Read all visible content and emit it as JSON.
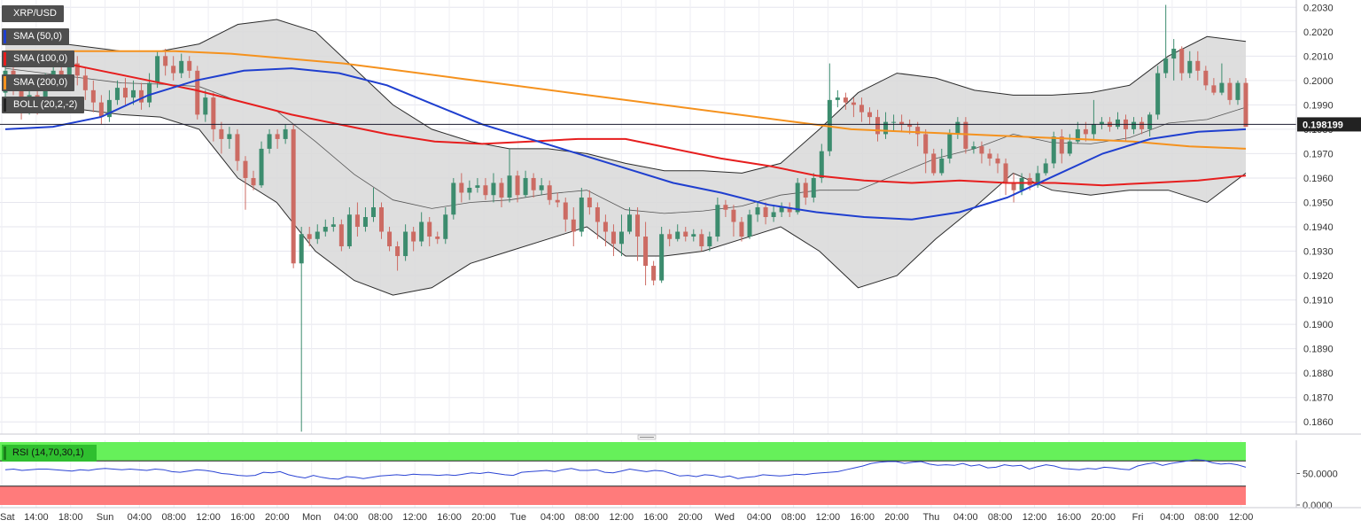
{
  "chart_data": {
    "type": "candlestick",
    "symbol": "XRP/USD",
    "current_price_label": "0.198199",
    "price_ylim": [
      0.1855,
      0.2033
    ],
    "price_ticks": [
      "0.2030",
      "0.2020",
      "0.2010",
      "0.2000",
      "0.1990",
      "0.1980",
      "0.1970",
      "0.1960",
      "0.1950",
      "0.1940",
      "0.1930",
      "0.1920",
      "0.1910",
      "0.1900",
      "0.1890",
      "0.1880",
      "0.1870",
      "0.1860"
    ],
    "x_ticks": [
      "Sat",
      "14:00",
      "18:00",
      "Sun",
      "04:00",
      "08:00",
      "12:00",
      "16:00",
      "20:00",
      "Mon",
      "04:00",
      "08:00",
      "12:00",
      "16:00",
      "20:00",
      "Tue",
      "04:00",
      "08:00",
      "12:00",
      "16:00",
      "20:00",
      "Wed",
      "04:00",
      "08:00",
      "12:00",
      "16:00",
      "20:00",
      "Thu",
      "04:00",
      "08:00",
      "12:00",
      "16:00",
      "20:00",
      "Fri",
      "04:00",
      "08:00",
      "12:00"
    ],
    "legend": [
      "SMA (50,0)",
      "SMA (100,0)",
      "SMA (200,0)",
      "BOLL (20,2,-2)"
    ],
    "rsi": {
      "label": "RSI (14,70,30,1)",
      "ticks": [
        "50.0000",
        "0.0000"
      ],
      "overbought": 70,
      "oversold": 30,
      "values": [
        56,
        57,
        55,
        56,
        57,
        57,
        56,
        55,
        54,
        56,
        55,
        57,
        58,
        57,
        56,
        57,
        56,
        55,
        57,
        56,
        53,
        52,
        54,
        56,
        55,
        53,
        50,
        49,
        47,
        46,
        47,
        52,
        51,
        53,
        48,
        45,
        43,
        47,
        44,
        42,
        41,
        45,
        44,
        42,
        44,
        46,
        47,
        48,
        47,
        49,
        48,
        48,
        47,
        48,
        47,
        49,
        51,
        50,
        52,
        50,
        48,
        47,
        52,
        53,
        54,
        55,
        53,
        56,
        58,
        55,
        55,
        56,
        52,
        51,
        54,
        57,
        55,
        53,
        55,
        54,
        50,
        46,
        47,
        45,
        48,
        47,
        44,
        46,
        42,
        44,
        45,
        48,
        47,
        46,
        47,
        49,
        48,
        50,
        51,
        52,
        53,
        56,
        59,
        62,
        66,
        68,
        69,
        69,
        66,
        68,
        69,
        65,
        63,
        64,
        63,
        66,
        62,
        64,
        59,
        60,
        64,
        62,
        63,
        57,
        61,
        64,
        62,
        58,
        57,
        56,
        58,
        57,
        60,
        59,
        57,
        56,
        62,
        65,
        67,
        63,
        66,
        68,
        70,
        72,
        71,
        67,
        65,
        66,
        64,
        60
      ]
    },
    "sma50": [
      0.198,
      0.1981,
      0.1985,
      0.1994,
      0.2,
      0.2004,
      0.2005,
      0.2003,
      0.1998,
      0.199,
      0.1982,
      0.1976,
      0.197,
      0.1964,
      0.1958,
      0.1954,
      0.1949,
      0.1946,
      0.1944,
      0.1943,
      0.1946,
      0.1952,
      0.1961,
      0.197,
      0.1976,
      0.1979,
      0.198
    ],
    "sma100": [
      0.201,
      0.2008,
      0.2004,
      0.2,
      0.1996,
      0.1991,
      0.1986,
      0.1982,
      0.1978,
      0.1975,
      0.1974,
      0.1975,
      0.1976,
      0.1976,
      0.1972,
      0.1968,
      0.1965,
      0.1961,
      0.1959,
      0.1958,
      0.1959,
      0.1958,
      0.1958,
      0.1957,
      0.1958,
      0.1959,
      0.1961
    ],
    "sma200": [
      0.2012,
      0.2012,
      0.2012,
      0.2012,
      0.2011,
      0.2009,
      0.2007,
      0.2004,
      0.2001,
      0.1998,
      0.1995,
      0.1992,
      0.1989,
      0.1986,
      0.1983,
      0.198,
      0.1979,
      0.1978,
      0.1977,
      0.1976,
      0.1975,
      0.1973,
      0.1972
    ],
    "boll_upper": [
      0.2018,
      0.2016,
      0.2014,
      0.2012,
      0.2012,
      0.2015,
      0.2023,
      0.2025,
      0.202,
      0.2005,
      0.199,
      0.198,
      0.1975,
      0.1972,
      0.1972,
      0.197,
      0.1966,
      0.1963,
      0.1963,
      0.1962,
      0.1966,
      0.198,
      0.1995,
      0.2003,
      0.2001,
      0.1996,
      0.1994,
      0.1994,
      0.1995,
      0.1998,
      0.201,
      0.2018,
      0.2016
    ],
    "boll_lower": [
      0.1992,
      0.199,
      0.1988,
      0.1986,
      0.1985,
      0.198,
      0.196,
      0.195,
      0.193,
      0.1918,
      0.1912,
      0.1915,
      0.1925,
      0.193,
      0.1935,
      0.194,
      0.1928,
      0.1928,
      0.193,
      0.1935,
      0.194,
      0.193,
      0.1915,
      0.192,
      0.1935,
      0.1948,
      0.1962,
      0.1955,
      0.1953,
      0.1955,
      0.1955,
      0.195,
      0.1962
    ],
    "candles": [
      [
        0.1995,
        0.2004,
        0.2006,
        0.199
      ],
      [
        0.2004,
        0.1998,
        0.2008,
        0.1994
      ],
      [
        0.1998,
        0.1988,
        0.2,
        0.1984
      ],
      [
        0.1988,
        0.1994,
        0.1998,
        0.1986
      ],
      [
        0.1994,
        0.199,
        0.2,
        0.1986
      ],
      [
        0.199,
        0.1999,
        0.2003,
        0.1988
      ],
      [
        0.1999,
        0.2004,
        0.2007,
        0.1996
      ],
      [
        0.2004,
        0.2001,
        0.2008,
        0.1998
      ],
      [
        0.2001,
        0.2007,
        0.201,
        0.1999
      ],
      [
        0.2007,
        0.2002,
        0.201,
        0.1998
      ],
      [
        0.2002,
        0.1996,
        0.2005,
        0.1992
      ],
      [
        0.1996,
        0.1991,
        0.2,
        0.1987
      ],
      [
        0.1991,
        0.1985,
        0.1994,
        0.1982
      ],
      [
        0.1985,
        0.1992,
        0.1996,
        0.1983
      ],
      [
        0.1992,
        0.1997,
        0.2,
        0.199
      ],
      [
        0.1997,
        0.1993,
        0.2001,
        0.199
      ],
      [
        0.1993,
        0.1996,
        0.2,
        0.199
      ],
      [
        0.1996,
        0.1991,
        0.1999,
        0.1988
      ],
      [
        0.1991,
        0.1999,
        0.2003,
        0.1989
      ],
      [
        0.1999,
        0.201,
        0.2012,
        0.1997
      ],
      [
        0.201,
        0.2006,
        0.2013,
        0.2002
      ],
      [
        0.2006,
        0.2003,
        0.201,
        0.2
      ],
      [
        0.2003,
        0.2008,
        0.2011,
        0.2001
      ],
      [
        0.2008,
        0.2004,
        0.201,
        0.2001
      ],
      [
        0.2004,
        0.1986,
        0.2006,
        0.1984
      ],
      [
        0.1986,
        0.1993,
        0.1996,
        0.1983
      ],
      [
        0.1993,
        0.198,
        0.1995,
        0.1975
      ],
      [
        0.198,
        0.1976,
        0.1983,
        0.197
      ],
      [
        0.1976,
        0.1978,
        0.1981,
        0.1972
      ],
      [
        0.1978,
        0.1967,
        0.198,
        0.1963
      ],
      [
        0.1967,
        0.196,
        0.1969,
        0.1947
      ],
      [
        0.196,
        0.1957,
        0.1963,
        0.1955
      ],
      [
        0.1957,
        0.1972,
        0.1975,
        0.1956
      ],
      [
        0.1972,
        0.1978,
        0.198,
        0.197
      ],
      [
        0.1978,
        0.1976,
        0.198,
        0.1972
      ],
      [
        0.1976,
        0.198,
        0.1982,
        0.1974
      ],
      [
        0.198,
        0.1925,
        0.1982,
        0.1923
      ],
      [
        0.1925,
        0.1937,
        0.194,
        0.1856
      ],
      [
        0.1937,
        0.1935,
        0.194,
        0.1932
      ],
      [
        0.1935,
        0.1938,
        0.1941,
        0.1933
      ],
      [
        0.1938,
        0.194,
        0.1943,
        0.1936
      ],
      [
        0.194,
        0.1941,
        0.1944,
        0.1938
      ],
      [
        0.1941,
        0.1932,
        0.1943,
        0.193
      ],
      [
        0.1932,
        0.1945,
        0.1948,
        0.1931
      ],
      [
        0.1945,
        0.194,
        0.195,
        0.1936
      ],
      [
        0.194,
        0.1944,
        0.1948,
        0.1938
      ],
      [
        0.1944,
        0.1948,
        0.1956,
        0.1942
      ],
      [
        0.1948,
        0.1938,
        0.195,
        0.1935
      ],
      [
        0.1938,
        0.1932,
        0.194,
        0.193
      ],
      [
        0.1932,
        0.1928,
        0.1934,
        0.1922
      ],
      [
        0.1928,
        0.1938,
        0.1941,
        0.1926
      ],
      [
        0.1938,
        0.1934,
        0.194,
        0.193
      ],
      [
        0.1934,
        0.1942,
        0.1946,
        0.1932
      ],
      [
        0.1942,
        0.1936,
        0.1944,
        0.1932
      ],
      [
        0.1936,
        0.1935,
        0.1938,
        0.1933
      ],
      [
        0.1935,
        0.1945,
        0.1948,
        0.1933
      ],
      [
        0.1945,
        0.1958,
        0.196,
        0.1943
      ],
      [
        0.1958,
        0.1954,
        0.1962,
        0.195
      ],
      [
        0.1954,
        0.1956,
        0.1959,
        0.1951
      ],
      [
        0.1956,
        0.1957,
        0.196,
        0.1954
      ],
      [
        0.1957,
        0.1953,
        0.196,
        0.1951
      ],
      [
        0.1953,
        0.1958,
        0.1962,
        0.195
      ],
      [
        0.1958,
        0.1952,
        0.196,
        0.1948
      ],
      [
        0.1952,
        0.1961,
        0.1972,
        0.195
      ],
      [
        0.1961,
        0.1953,
        0.1963,
        0.195
      ],
      [
        0.1953,
        0.196,
        0.1963,
        0.1952
      ],
      [
        0.196,
        0.1955,
        0.1962,
        0.1952
      ],
      [
        0.1955,
        0.1957,
        0.196,
        0.1953
      ],
      [
        0.1957,
        0.1951,
        0.1959,
        0.1949
      ],
      [
        0.1951,
        0.195,
        0.1954,
        0.1948
      ],
      [
        0.195,
        0.1943,
        0.1952,
        0.1938
      ],
      [
        0.1943,
        0.1938,
        0.1948,
        0.1932
      ],
      [
        0.1938,
        0.1952,
        0.1956,
        0.1936
      ],
      [
        0.1952,
        0.1948,
        0.1955,
        0.1945
      ],
      [
        0.1948,
        0.1942,
        0.195,
        0.1935
      ],
      [
        0.1942,
        0.1938,
        0.1945,
        0.1932
      ],
      [
        0.1938,
        0.1933,
        0.1941,
        0.1928
      ],
      [
        0.1933,
        0.1938,
        0.1945,
        0.1928
      ],
      [
        0.1938,
        0.1945,
        0.1948,
        0.1937
      ],
      [
        0.1945,
        0.1936,
        0.1948,
        0.1926
      ],
      [
        0.1936,
        0.1924,
        0.1942,
        0.1916
      ],
      [
        0.1924,
        0.1918,
        0.1926,
        0.1916
      ],
      [
        0.1918,
        0.1937,
        0.194,
        0.1917
      ],
      [
        0.1937,
        0.1935,
        0.1939,
        0.1932
      ],
      [
        0.1935,
        0.1938,
        0.1941,
        0.1934
      ],
      [
        0.1938,
        0.1936,
        0.194,
        0.1934
      ],
      [
        0.1936,
        0.1937,
        0.1939,
        0.1934
      ],
      [
        0.1937,
        0.1932,
        0.1939,
        0.193
      ],
      [
        0.1932,
        0.1936,
        0.1938,
        0.193
      ],
      [
        0.1936,
        0.1949,
        0.1952,
        0.1934
      ],
      [
        0.1949,
        0.1947,
        0.1951,
        0.1944
      ],
      [
        0.1947,
        0.1942,
        0.1949,
        0.1936
      ],
      [
        0.1942,
        0.1936,
        0.1944,
        0.1934
      ],
      [
        0.1936,
        0.1945,
        0.1947,
        0.1935
      ],
      [
        0.1945,
        0.1948,
        0.195,
        0.1942
      ],
      [
        0.1948,
        0.1944,
        0.195,
        0.1941
      ],
      [
        0.1944,
        0.1946,
        0.1949,
        0.1942
      ],
      [
        0.1946,
        0.1948,
        0.195,
        0.1944
      ],
      [
        0.1948,
        0.1946,
        0.195,
        0.1944
      ],
      [
        0.1946,
        0.1958,
        0.196,
        0.1945
      ],
      [
        0.1958,
        0.1952,
        0.196,
        0.1949
      ],
      [
        0.1952,
        0.196,
        0.1962,
        0.195
      ],
      [
        0.196,
        0.1971,
        0.1974,
        0.1958
      ],
      [
        0.1971,
        0.1992,
        0.2007,
        0.1969
      ],
      [
        0.1992,
        0.1993,
        0.1996,
        0.1989
      ],
      [
        0.1993,
        0.1991,
        0.1995,
        0.1988
      ],
      [
        0.1991,
        0.199,
        0.1993,
        0.1985
      ],
      [
        0.199,
        0.1987,
        0.1993,
        0.1983
      ],
      [
        0.1987,
        0.1985,
        0.1989,
        0.1982
      ],
      [
        0.1985,
        0.1978,
        0.1988,
        0.1975
      ],
      [
        0.1978,
        0.1983,
        0.1987,
        0.1976
      ],
      [
        0.1983,
        0.1983,
        0.1986,
        0.1979
      ],
      [
        0.1983,
        0.1982,
        0.1986,
        0.1979
      ],
      [
        0.1982,
        0.1981,
        0.1984,
        0.1978
      ],
      [
        0.1981,
        0.1978,
        0.1983,
        0.1973
      ],
      [
        0.1978,
        0.197,
        0.198,
        0.1962
      ],
      [
        0.197,
        0.1962,
        0.1972,
        0.1961
      ],
      [
        0.1962,
        0.1968,
        0.1972,
        0.1961
      ],
      [
        0.1968,
        0.1978,
        0.198,
        0.1966
      ],
      [
        0.1978,
        0.1983,
        0.1985,
        0.1976
      ],
      [
        0.1983,
        0.1972,
        0.1985,
        0.197
      ],
      [
        0.1972,
        0.1973,
        0.1975,
        0.197
      ],
      [
        0.1973,
        0.197,
        0.1975,
        0.1966
      ],
      [
        0.197,
        0.1968,
        0.1972,
        0.1965
      ],
      [
        0.1968,
        0.1966,
        0.197,
        0.1962
      ],
      [
        0.1966,
        0.1958,
        0.1968,
        0.1953
      ],
      [
        0.1958,
        0.1955,
        0.1962,
        0.195
      ],
      [
        0.1955,
        0.196,
        0.1962,
        0.1953
      ],
      [
        0.196,
        0.1957,
        0.1962,
        0.1955
      ],
      [
        0.1957,
        0.1962,
        0.1965,
        0.1956
      ],
      [
        0.1962,
        0.1966,
        0.1968,
        0.1961
      ],
      [
        0.1966,
        0.1977,
        0.1979,
        0.1964
      ],
      [
        0.1977,
        0.197,
        0.198,
        0.1966
      ],
      [
        0.197,
        0.1975,
        0.1978,
        0.1969
      ],
      [
        0.1975,
        0.198,
        0.1983,
        0.1974
      ],
      [
        0.198,
        0.1978,
        0.1983,
        0.1975
      ],
      [
        0.1978,
        0.1982,
        0.1992,
        0.1976
      ],
      [
        0.1982,
        0.1983,
        0.1985,
        0.198
      ],
      [
        0.1983,
        0.1981,
        0.1985,
        0.1979
      ],
      [
        0.1981,
        0.1984,
        0.1987,
        0.198
      ],
      [
        0.1984,
        0.198,
        0.1986,
        0.1975
      ],
      [
        0.198,
        0.1983,
        0.1985,
        0.1978
      ],
      [
        0.1983,
        0.198,
        0.1985,
        0.1978
      ],
      [
        0.198,
        0.1986,
        0.1987,
        0.1977
      ],
      [
        0.1986,
        0.2003,
        0.2006,
        0.1984
      ],
      [
        0.2003,
        0.2009,
        0.2031,
        0.2001
      ],
      [
        0.2009,
        0.2013,
        0.2017,
        0.2
      ],
      [
        0.2013,
        0.2003,
        0.2014,
        0.2
      ],
      [
        0.2003,
        0.2008,
        0.2012,
        0.2001
      ],
      [
        0.2008,
        0.2004,
        0.2012,
        0.2
      ],
      [
        0.2004,
        0.1998,
        0.2006,
        0.1996
      ],
      [
        0.1998,
        0.1995,
        0.2001,
        0.1994
      ],
      [
        0.1995,
        0.1999,
        0.2007,
        0.1994
      ],
      [
        0.1999,
        0.1992,
        0.2001,
        0.199
      ],
      [
        0.1992,
        0.1999,
        0.2,
        0.199
      ],
      [
        0.1999,
        0.1981,
        0.2001,
        0.1981
      ]
    ],
    "colors": {
      "up": "#3c8c6e",
      "down": "#cc6b63",
      "sma50": "#1f3fcf",
      "sma100": "#e61e1e",
      "sma200": "#f5921e",
      "boll_fill": "#d8d8d8",
      "rsi_line": "#2b44d4",
      "rsi_overbought_fill": "#66f05a",
      "rsi_oversold_fill": "#ff7b7b"
    }
  }
}
